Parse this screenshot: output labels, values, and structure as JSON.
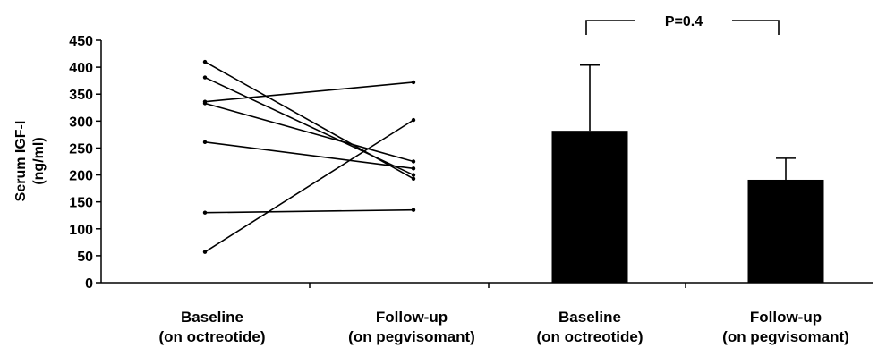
{
  "chart_data": {
    "type": "line",
    "ylabel": [
      "Serum IGF-I",
      "(ng/ml)"
    ],
    "ylim": [
      0,
      450
    ],
    "yticks": [
      0,
      50,
      100,
      150,
      200,
      250,
      300,
      350,
      400,
      450
    ],
    "grid": false,
    "categories": [
      [
        "Baseline",
        "(on octreotide)"
      ],
      [
        "Follow-up",
        "(on pegvisomant)"
      ],
      [
        "Baseline",
        "(on octreotide)"
      ],
      [
        "Follow-up",
        "(on pegvisomant)"
      ]
    ],
    "paired_lines": [
      {
        "baseline": 410,
        "followup": 193
      },
      {
        "baseline": 381,
        "followup": 200
      },
      {
        "baseline": 336,
        "followup": 372
      },
      {
        "baseline": 333,
        "followup": 225
      },
      {
        "baseline": 261,
        "followup": 212
      },
      {
        "baseline": 130,
        "followup": 135
      },
      {
        "baseline": 57,
        "followup": 302
      }
    ],
    "bars": [
      {
        "value": 282,
        "error_upper": 404
      },
      {
        "value": 191,
        "error_upper": 231
      }
    ],
    "annotation": "P=0.4"
  }
}
